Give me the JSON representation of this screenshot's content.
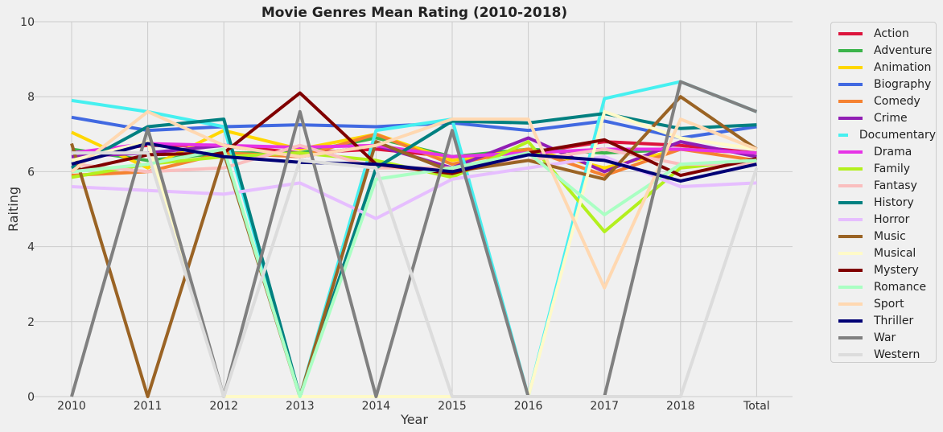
{
  "chart_data": {
    "type": "line",
    "title": "Movie Genres Mean Rating (2010-2018)",
    "xlabel": "Year",
    "ylabel": "Raiting",
    "categories": [
      "2010",
      "2011",
      "2012",
      "2013",
      "2014",
      "2015",
      "2016",
      "2017",
      "2018",
      "Total"
    ],
    "ylim": [
      0,
      10
    ],
    "yticks": [
      "0",
      "2",
      "4",
      "6",
      "8",
      "10"
    ],
    "grid": true,
    "legend_position": "outside-right",
    "series": [
      {
        "name": "Action",
        "color": "#dc143c",
        "values": [
          6.5,
          6.7,
          6.7,
          6.5,
          6.6,
          6.4,
          6.5,
          6.8,
          6.7,
          6.5
        ]
      },
      {
        "name": "Adventure",
        "color": "#3cb44b",
        "values": [
          6.6,
          6.3,
          6.5,
          6.5,
          6.9,
          6.4,
          6.6,
          6.5,
          6.6,
          6.5
        ]
      },
      {
        "name": "Animation",
        "color": "#ffd700",
        "values": [
          7.05,
          6.1,
          7.1,
          6.6,
          7.0,
          6.3,
          6.6,
          6.1,
          6.6,
          6.5
        ]
      },
      {
        "name": "Biography",
        "color": "#4169e1",
        "values": [
          7.45,
          7.1,
          7.2,
          7.25,
          7.2,
          7.3,
          7.1,
          7.35,
          6.9,
          7.2
        ]
      },
      {
        "name": "Comedy",
        "color": "#f58231",
        "values": [
          5.9,
          6.0,
          6.5,
          6.4,
          7.0,
          6.2,
          6.6,
          5.9,
          6.6,
          6.3
        ]
      },
      {
        "name": "Crime",
        "color": "#911eb4",
        "values": [
          6.4,
          6.5,
          6.7,
          6.4,
          6.7,
          6.1,
          6.9,
          6.0,
          6.8,
          6.4
        ]
      },
      {
        "name": "Documentary",
        "color": "#46f0f0",
        "values": [
          7.9,
          7.6,
          7.2,
          0,
          7.1,
          7.4,
          0,
          7.95,
          8.4,
          7.6
        ]
      },
      {
        "name": "Drama",
        "color": "#e633e6",
        "values": [
          6.5,
          6.75,
          6.7,
          6.65,
          6.7,
          6.4,
          6.5,
          6.6,
          6.6,
          6.5
        ]
      },
      {
        "name": "Family",
        "color": "#b3f01e",
        "values": [
          5.85,
          6.2,
          6.4,
          6.5,
          6.3,
          5.85,
          6.8,
          4.4,
          6.1,
          6.3
        ]
      },
      {
        "name": "Fantasy",
        "color": "#fabebe",
        "values": [
          6.2,
          6.0,
          6.1,
          6.7,
          6.1,
          6.1,
          6.3,
          6.6,
          6.2,
          6.2
        ]
      },
      {
        "name": "History",
        "color": "#008080",
        "values": [
          6.1,
          7.2,
          7.4,
          0,
          6.1,
          7.35,
          7.3,
          7.55,
          7.15,
          7.25
        ]
      },
      {
        "name": "Horror",
        "color": "#e6beff",
        "values": [
          5.6,
          5.5,
          5.4,
          5.7,
          4.75,
          5.8,
          6.1,
          6.4,
          5.6,
          5.7
        ]
      },
      {
        "name": "Music",
        "color": "#9a6324",
        "values": [
          6.75,
          0,
          6.5,
          0,
          6.8,
          6.0,
          6.3,
          5.8,
          8.0,
          6.6
        ]
      },
      {
        "name": "Musical",
        "color": "#fffac8",
        "values": [
          6.3,
          6.8,
          0,
          0,
          0,
          0,
          0,
          7.6,
          6.9,
          6.6
        ]
      },
      {
        "name": "Mystery",
        "color": "#800000",
        "values": [
          6.0,
          6.45,
          6.5,
          8.1,
          6.2,
          5.95,
          6.5,
          6.85,
          5.9,
          6.35
        ]
      },
      {
        "name": "Romance",
        "color": "#aaffc3",
        "values": [
          6.0,
          6.2,
          6.6,
          0,
          5.8,
          6.1,
          6.5,
          4.85,
          6.2,
          6.3
        ]
      },
      {
        "name": "Sport",
        "color": "#ffd8b1",
        "values": [
          6.0,
          7.6,
          6.7,
          6.4,
          6.7,
          7.4,
          7.4,
          2.9,
          7.4,
          6.6
        ]
      },
      {
        "name": "Thriller",
        "color": "#000075",
        "values": [
          6.2,
          6.75,
          6.4,
          6.25,
          6.2,
          6.0,
          6.45,
          6.3,
          5.75,
          6.2
        ]
      },
      {
        "name": "War",
        "color": "#808080",
        "values": [
          0,
          7.15,
          0,
          7.6,
          0,
          7.1,
          0,
          0,
          8.4,
          7.6
        ]
      },
      {
        "name": "Western",
        "color": "#dcdcdc",
        "values": [
          6.5,
          6.5,
          0,
          6.3,
          6.1,
          0,
          0,
          0,
          0,
          6.1
        ]
      }
    ]
  }
}
